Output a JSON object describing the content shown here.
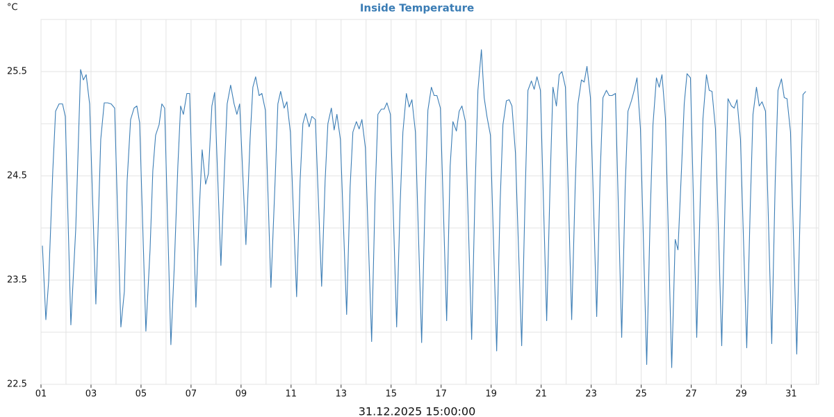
{
  "chart_data": {
    "type": "line",
    "title": "Inside Temperature",
    "y_unit": "°C",
    "x_label": "31.12.2025 15:00:00",
    "color": "#3b7db5",
    "title_color": "#3b7db5",
    "grid": true,
    "xlim": [
      1,
      32.1
    ],
    "ylim": [
      22.5,
      26
    ],
    "xticks": [
      {
        "value": 1,
        "label": "01"
      },
      {
        "value": 3,
        "label": "03"
      },
      {
        "value": 5,
        "label": "05"
      },
      {
        "value": 7,
        "label": "07"
      },
      {
        "value": 9,
        "label": "09"
      },
      {
        "value": 11,
        "label": "11"
      },
      {
        "value": 13,
        "label": "13"
      },
      {
        "value": 15,
        "label": "15"
      },
      {
        "value": 17,
        "label": "17"
      },
      {
        "value": 19,
        "label": "19"
      },
      {
        "value": 21,
        "label": "21"
      },
      {
        "value": 23,
        "label": "23"
      },
      {
        "value": 25,
        "label": "25"
      },
      {
        "value": 27,
        "label": "27"
      },
      {
        "value": 29,
        "label": "29"
      },
      {
        "value": 31,
        "label": "31"
      }
    ],
    "minor_xticks": [
      2,
      4,
      6,
      8,
      10,
      12,
      14,
      16,
      18,
      20,
      22,
      24,
      26,
      28,
      30,
      32
    ],
    "yticks": [
      22.5,
      23.5,
      24.5,
      25.5
    ],
    "minor_yticks": [
      23,
      24,
      25,
      26
    ],
    "x": [
      1.056,
      1.194,
      1.306,
      1.472,
      1.583,
      1.722,
      1.861,
      1.972,
      2.194,
      2.389,
      2.583,
      2.694,
      2.806,
      2.944,
      3.194,
      3.389,
      3.528,
      3.667,
      3.806,
      3.944,
      4.194,
      4.333,
      4.444,
      4.583,
      4.722,
      4.833,
      4.944,
      5.194,
      5.361,
      5.472,
      5.583,
      5.722,
      5.833,
      5.944,
      6.194,
      6.333,
      6.472,
      6.583,
      6.694,
      6.833,
      6.944,
      7.194,
      7.333,
      7.444,
      7.583,
      7.694,
      7.833,
      7.944,
      8.194,
      8.333,
      8.444,
      8.583,
      8.722,
      8.833,
      8.944,
      9.194,
      9.361,
      9.472,
      9.583,
      9.722,
      9.833,
      9.972,
      10.194,
      10.361,
      10.472,
      10.583,
      10.722,
      10.833,
      10.972,
      11.222,
      11.361,
      11.472,
      11.583,
      11.722,
      11.833,
      11.972,
      12.222,
      12.361,
      12.472,
      12.611,
      12.722,
      12.833,
      12.972,
      13.222,
      13.361,
      13.472,
      13.611,
      13.722,
      13.833,
      13.972,
      14.222,
      14.361,
      14.472,
      14.611,
      14.722,
      14.833,
      14.972,
      15.222,
      15.361,
      15.472,
      15.611,
      15.722,
      15.833,
      15.972,
      16.222,
      16.361,
      16.472,
      16.611,
      16.722,
      16.833,
      16.972,
      17.222,
      17.361,
      17.472,
      17.611,
      17.722,
      17.833,
      17.972,
      18.222,
      18.361,
      18.472,
      18.611,
      18.722,
      18.833,
      18.972,
      19.222,
      19.361,
      19.472,
      19.611,
      19.722,
      19.833,
      19.972,
      20.222,
      20.361,
      20.472,
      20.611,
      20.722,
      20.833,
      20.972,
      21.222,
      21.361,
      21.472,
      21.611,
      21.722,
      21.833,
      21.972,
      22.222,
      22.361,
      22.472,
      22.611,
      22.722,
      22.833,
      22.972,
      23.222,
      23.361,
      23.472,
      23.611,
      23.722,
      23.833,
      23.972,
      24.222,
      24.361,
      24.472,
      24.611,
      24.722,
      24.833,
      24.972,
      25.222,
      25.361,
      25.472,
      25.611,
      25.722,
      25.833,
      25.972,
      26.222,
      26.361,
      26.472,
      26.611,
      26.722,
      26.833,
      26.972,
      27.222,
      27.361,
      27.472,
      27.611,
      27.722,
      27.833,
      27.972,
      28.222,
      28.361,
      28.472,
      28.611,
      28.722,
      28.833,
      28.972,
      29.222,
      29.361,
      29.472,
      29.611,
      29.722,
      29.833,
      29.972,
      30.222,
      30.361,
      30.472,
      30.611,
      30.722,
      30.833,
      30.972,
      31.222,
      31.361,
      31.472,
      31.583
    ],
    "values": [
      23.83,
      23.12,
      23.49,
      24.55,
      25.12,
      25.19,
      25.19,
      25.07,
      23.07,
      23.99,
      25.52,
      25.42,
      25.47,
      25.19,
      23.27,
      24.85,
      25.2,
      25.2,
      25.19,
      25.15,
      23.05,
      23.39,
      24.45,
      25.04,
      25.15,
      25.17,
      25.01,
      23.01,
      23.79,
      24.55,
      24.89,
      24.99,
      25.19,
      25.15,
      22.88,
      23.65,
      24.59,
      25.17,
      25.09,
      25.29,
      25.29,
      23.24,
      24.19,
      24.75,
      24.42,
      24.52,
      25.17,
      25.3,
      23.64,
      24.55,
      25.19,
      25.37,
      25.19,
      25.09,
      25.19,
      23.84,
      24.85,
      25.35,
      25.45,
      25.27,
      25.29,
      25.13,
      23.43,
      24.45,
      25.19,
      25.31,
      25.15,
      25.21,
      24.92,
      23.34,
      24.45,
      25.0,
      25.1,
      24.97,
      25.07,
      25.04,
      23.44,
      24.45,
      25.0,
      25.15,
      24.94,
      25.09,
      24.85,
      23.17,
      24.39,
      24.92,
      25.02,
      24.95,
      25.04,
      24.77,
      22.91,
      24.32,
      25.09,
      25.14,
      25.14,
      25.2,
      25.09,
      23.05,
      24.22,
      24.92,
      25.29,
      25.16,
      25.23,
      24.92,
      22.9,
      24.29,
      25.13,
      25.35,
      25.27,
      25.27,
      25.15,
      23.11,
      24.59,
      25.02,
      24.93,
      25.12,
      25.17,
      25.02,
      22.93,
      24.39,
      25.32,
      25.71,
      25.25,
      25.07,
      24.89,
      22.82,
      24.25,
      24.99,
      25.22,
      25.23,
      25.17,
      24.72,
      22.87,
      24.32,
      25.32,
      25.41,
      25.33,
      25.45,
      25.32,
      23.11,
      24.45,
      25.35,
      25.17,
      25.47,
      25.5,
      25.35,
      23.12,
      24.39,
      25.19,
      25.42,
      25.4,
      25.55,
      25.25,
      23.15,
      24.52,
      25.25,
      25.32,
      25.27,
      25.27,
      25.29,
      22.95,
      24.39,
      25.12,
      25.22,
      25.32,
      25.44,
      24.95,
      22.69,
      24.12,
      24.99,
      25.44,
      25.35,
      25.47,
      25.05,
      22.66,
      23.89,
      23.79,
      24.55,
      25.19,
      25.48,
      25.44,
      22.95,
      24.25,
      25.05,
      25.47,
      25.32,
      25.31,
      24.95,
      22.87,
      24.32,
      25.24,
      25.17,
      25.15,
      25.23,
      24.85,
      22.85,
      24.19,
      25.09,
      25.35,
      25.17,
      25.21,
      25.12,
      22.89,
      24.45,
      25.32,
      25.43,
      25.25,
      25.24,
      24.92,
      22.79,
      24.19,
      25.28,
      25.31
    ]
  }
}
